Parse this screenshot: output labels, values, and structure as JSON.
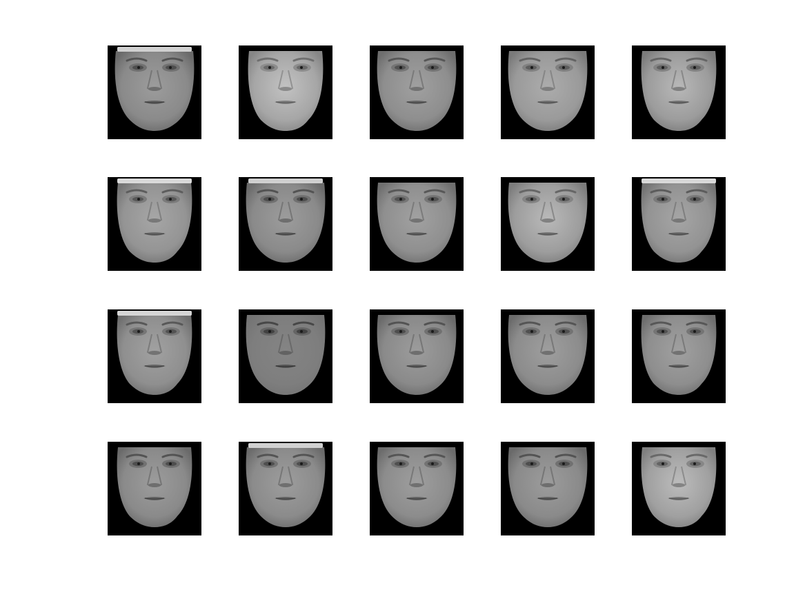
{
  "figure": {
    "rows": 4,
    "cols": 5,
    "background_color": "#ffffff",
    "tile_background_color": "#000000",
    "faces": [
      {
        "skin": "#8a8a8a",
        "tone": "darker",
        "hair_band": true,
        "sex": "male"
      },
      {
        "skin": "#a6a6a6",
        "tone": "light",
        "hair_band": false,
        "sex": "female"
      },
      {
        "skin": "#8e8e8e",
        "tone": "medium",
        "hair_band": false,
        "sex": "male"
      },
      {
        "skin": "#9a9a9a",
        "tone": "medium",
        "hair_band": false,
        "sex": "male"
      },
      {
        "skin": "#9c9c9c",
        "tone": "light",
        "hair_band": false,
        "sex": "female"
      },
      {
        "skin": "#949494",
        "tone": "medium",
        "hair_band": true,
        "sex": "female"
      },
      {
        "skin": "#8a8a8a",
        "tone": "medium",
        "hair_band": true,
        "sex": "male"
      },
      {
        "skin": "#8f8f8f",
        "tone": "medium",
        "hair_band": false,
        "sex": "male"
      },
      {
        "skin": "#9d9d9d",
        "tone": "light",
        "hair_band": false,
        "sex": "male"
      },
      {
        "skin": "#939393",
        "tone": "medium",
        "hair_band": true,
        "sex": "female"
      },
      {
        "skin": "#8f8f8f",
        "tone": "medium",
        "hair_band": true,
        "sex": "female"
      },
      {
        "skin": "#7e7e7e",
        "tone": "flat",
        "hair_band": false,
        "sex": "male"
      },
      {
        "skin": "#8a8a8a",
        "tone": "medium",
        "hair_band": false,
        "sex": "male"
      },
      {
        "skin": "#8c8c8c",
        "tone": "medium",
        "hair_band": false,
        "sex": "male"
      },
      {
        "skin": "#8e8e8e",
        "tone": "medium",
        "hair_band": false,
        "sex": "female"
      },
      {
        "skin": "#8a8a8a",
        "tone": "medium",
        "hair_band": false,
        "sex": "female"
      },
      {
        "skin": "#8b8b8b",
        "tone": "medium",
        "hair_band": true,
        "sex": "male"
      },
      {
        "skin": "#8c8c8c",
        "tone": "medium",
        "hair_band": false,
        "sex": "male"
      },
      {
        "skin": "#8a8a8a",
        "tone": "medium",
        "hair_band": false,
        "sex": "male"
      },
      {
        "skin": "#a0a0a0",
        "tone": "light",
        "hair_band": false,
        "sex": "female"
      }
    ]
  }
}
